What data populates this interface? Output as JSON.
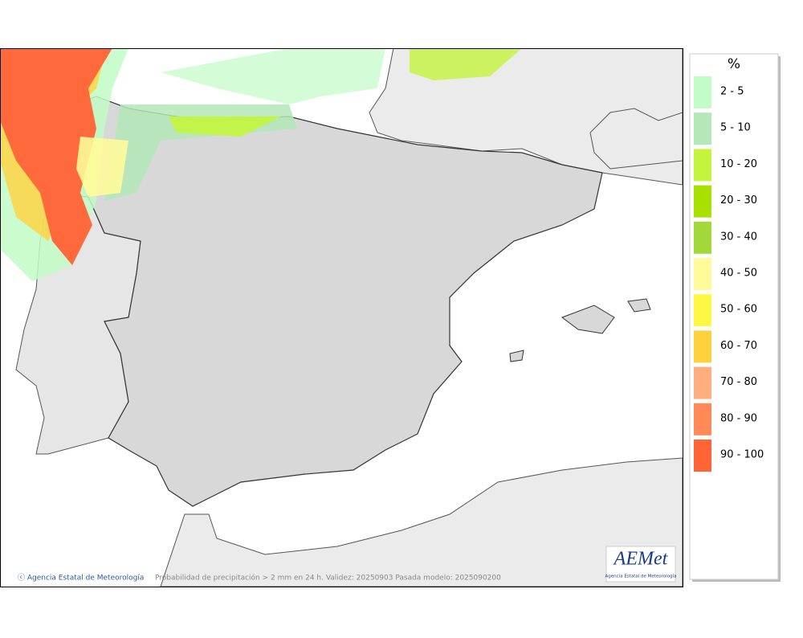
{
  "map": {
    "footer": "Probabilidad de precipitación > 2 mm en 24 h. Validez: 20250903 Pasada modelo: 2025090200",
    "copyright": "ⓒ Agencia Estatal de Meteorología",
    "logo": {
      "name": "AEMet",
      "subtitle": "Agencia Estatal de Meteorología"
    }
  },
  "legend": {
    "title": "%",
    "items": [
      {
        "label": "2 - 5",
        "color": "#c2fcc6"
      },
      {
        "label": "5 - 10",
        "color": "#b4e8b8"
      },
      {
        "label": "10 - 20",
        "color": "#c4f53c"
      },
      {
        "label": "20 - 30",
        "color": "#a8e000"
      },
      {
        "label": "30 - 40",
        "color": "#a2d83a"
      },
      {
        "label": "40 - 50",
        "color": "#fffb9a"
      },
      {
        "label": "50 - 60",
        "color": "#fff842"
      },
      {
        "label": "60 - 70",
        "color": "#ffd23c"
      },
      {
        "label": "70 - 80",
        "color": "#ffae80"
      },
      {
        "label": "80 - 90",
        "color": "#ff8a58"
      },
      {
        "label": "90 - 100",
        "color": "#ff6436"
      }
    ]
  }
}
